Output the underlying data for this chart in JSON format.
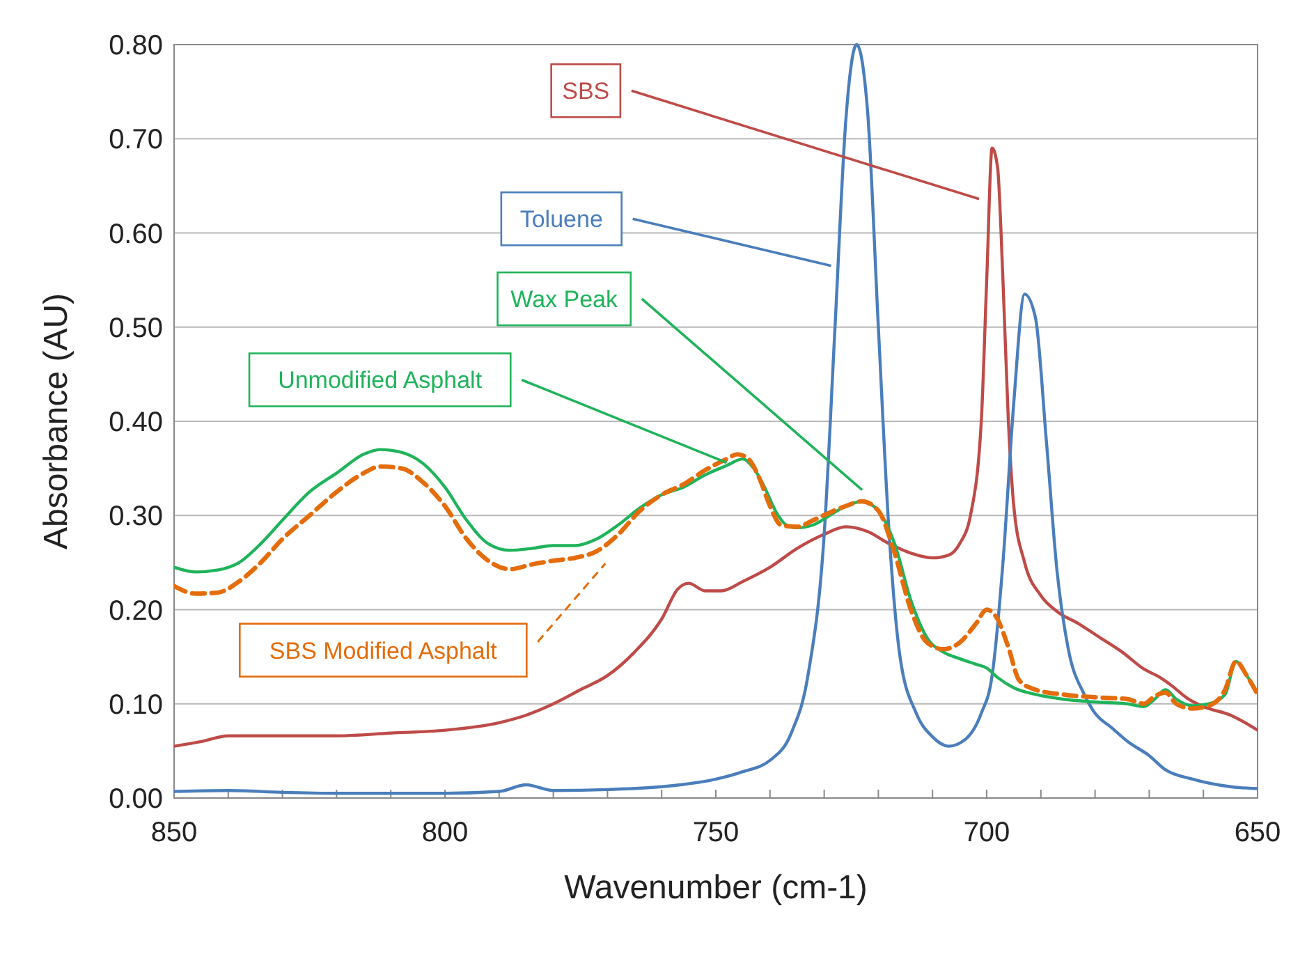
{
  "chart_data": {
    "type": "line",
    "xlabel": "Wavenumber (cm-1)",
    "ylabel": "Absorbance (AU)",
    "xlim": [
      850,
      650
    ],
    "ylim": [
      0,
      0.8
    ],
    "xticks": [
      850,
      {
        "value": 840,
        "label": null
      },
      {
        "value": 830,
        "label": null
      },
      {
        "value": 820,
        "label": null
      },
      {
        "value": 810,
        "label": null
      },
      800,
      {
        "value": 790,
        "label": null
      },
      {
        "value": 780,
        "label": null
      },
      {
        "value": 770,
        "label": null
      },
      {
        "value": 760,
        "label": null
      },
      750,
      {
        "value": 740,
        "label": null
      },
      {
        "value": 730,
        "label": null
      },
      {
        "value": 720,
        "label": null
      },
      {
        "value": 710,
        "label": null
      },
      700,
      {
        "value": 690,
        "label": null
      },
      {
        "value": 680,
        "label": null
      },
      {
        "value": 670,
        "label": null
      },
      {
        "value": 660,
        "label": null
      },
      650
    ],
    "yticks": [
      {
        "value": 0,
        "label": "0.00"
      },
      {
        "value": 0.1,
        "label": "0.10"
      },
      {
        "value": 0.2,
        "label": "0.20"
      },
      {
        "value": 0.3,
        "label": "0.30"
      },
      {
        "value": 0.4,
        "label": "0.40"
      },
      {
        "value": 0.5,
        "label": "0.50"
      },
      {
        "value": 0.6,
        "label": "0.60"
      },
      {
        "value": 0.7,
        "label": "0.70"
      },
      {
        "value": 0.8,
        "label": "0.80"
      }
    ],
    "grid": "y",
    "marker": "none",
    "annotations": [
      {
        "text": "Wax Peak",
        "x": 723,
        "y": 0.315
      }
    ],
    "series": [
      {
        "name": "SBS",
        "color": "#be4b48",
        "line_style": "solid",
        "x": [
          850,
          845,
          840,
          830,
          820,
          810,
          800,
          790,
          785,
          780,
          775,
          770,
          765,
          760,
          757,
          755,
          752,
          749,
          745,
          740,
          735,
          730,
          726,
          722,
          718,
          714,
          710,
          707,
          705,
          703,
          701,
          700,
          699,
          698,
          697,
          696,
          695,
          693,
          690,
          687,
          683,
          679,
          675,
          671,
          668,
          666,
          663,
          660,
          655,
          650
        ],
        "values": [
          0.055,
          0.06,
          0.066,
          0.066,
          0.066,
          0.069,
          0.072,
          0.08,
          0.088,
          0.1,
          0.115,
          0.13,
          0.155,
          0.19,
          0.222,
          0.228,
          0.22,
          0.22,
          0.23,
          0.245,
          0.265,
          0.28,
          0.288,
          0.283,
          0.27,
          0.26,
          0.255,
          0.258,
          0.27,
          0.3,
          0.4,
          0.55,
          0.69,
          0.67,
          0.55,
          0.4,
          0.31,
          0.25,
          0.215,
          0.198,
          0.185,
          0.17,
          0.155,
          0.137,
          0.128,
          0.12,
          0.106,
          0.097,
          0.088,
          0.072
        ]
      },
      {
        "name": "Toluene",
        "color": "#4a7ebb",
        "line_style": "solid",
        "x": [
          850,
          840,
          830,
          820,
          800,
          790,
          785,
          780,
          770,
          760,
          750,
          745,
          740,
          736,
          733,
          730,
          728,
          726,
          724,
          722,
          720,
          718,
          716,
          713,
          710,
          707,
          704,
          701,
          699,
          697,
          695,
          693,
          691,
          689,
          687,
          685,
          682,
          680,
          677,
          674,
          670,
          667,
          662,
          655,
          650
        ],
        "values": [
          0.007,
          0.008,
          0.006,
          0.005,
          0.005,
          0.007,
          0.014,
          0.008,
          0.009,
          0.012,
          0.02,
          0.028,
          0.04,
          0.07,
          0.13,
          0.28,
          0.5,
          0.72,
          0.8,
          0.73,
          0.5,
          0.28,
          0.15,
          0.09,
          0.065,
          0.055,
          0.062,
          0.09,
          0.13,
          0.25,
          0.42,
          0.535,
          0.51,
          0.38,
          0.24,
          0.16,
          0.11,
          0.09,
          0.075,
          0.06,
          0.045,
          0.03,
          0.02,
          0.012,
          0.01
        ]
      },
      {
        "name": "Unmodified Asphalt",
        "color": "#1fb35a",
        "line_style": "solid",
        "x": [
          850,
          846,
          842,
          838,
          834,
          830,
          825,
          820,
          815,
          812,
          808,
          804,
          800,
          796,
          792,
          788,
          784,
          780,
          776,
          772,
          768,
          764,
          760,
          756,
          752,
          748,
          745,
          743,
          741,
          739,
          737,
          735,
          732,
          729,
          726,
          723,
          720,
          717,
          714,
          711,
          708,
          705,
          702,
          700,
          698,
          695,
          691,
          686,
          680,
          674,
          671,
          669,
          667,
          665,
          662,
          659,
          656,
          654,
          652,
          650
        ],
        "values": [
          0.245,
          0.24,
          0.242,
          0.25,
          0.27,
          0.295,
          0.325,
          0.345,
          0.365,
          0.37,
          0.367,
          0.355,
          0.33,
          0.295,
          0.27,
          0.263,
          0.265,
          0.268,
          0.268,
          0.275,
          0.29,
          0.308,
          0.322,
          0.33,
          0.343,
          0.353,
          0.36,
          0.35,
          0.33,
          0.305,
          0.29,
          0.287,
          0.29,
          0.3,
          0.31,
          0.315,
          0.305,
          0.27,
          0.21,
          0.17,
          0.155,
          0.148,
          0.142,
          0.138,
          0.128,
          0.117,
          0.11,
          0.105,
          0.102,
          0.1,
          0.097,
          0.105,
          0.115,
          0.105,
          0.098,
          0.1,
          0.11,
          0.145,
          0.13,
          0.112
        ]
      },
      {
        "name": "SBS Modified Asphalt",
        "color": "#e46c0a",
        "line_style": "dashed",
        "x": [
          850,
          846,
          842,
          838,
          834,
          830,
          825,
          820,
          815,
          812,
          808,
          804,
          800,
          796,
          792,
          788,
          784,
          780,
          776,
          772,
          768,
          764,
          760,
          756,
          752,
          748,
          746,
          744,
          742,
          740,
          738,
          735,
          732,
          729,
          726,
          723,
          720,
          717,
          714,
          711,
          708,
          705,
          702,
          700,
          698,
          696,
          694,
          691,
          686,
          680,
          674,
          671,
          669,
          667,
          665,
          662,
          659,
          656,
          654,
          652,
          650
        ],
        "values": [
          0.225,
          0.217,
          0.218,
          0.23,
          0.25,
          0.275,
          0.3,
          0.325,
          0.345,
          0.352,
          0.35,
          0.335,
          0.31,
          0.275,
          0.252,
          0.243,
          0.248,
          0.252,
          0.255,
          0.262,
          0.28,
          0.305,
          0.322,
          0.333,
          0.348,
          0.36,
          0.365,
          0.36,
          0.34,
          0.31,
          0.29,
          0.288,
          0.295,
          0.303,
          0.31,
          0.315,
          0.305,
          0.26,
          0.2,
          0.165,
          0.158,
          0.165,
          0.185,
          0.2,
          0.19,
          0.16,
          0.125,
          0.115,
          0.11,
          0.107,
          0.105,
          0.1,
          0.108,
          0.112,
          0.1,
          0.095,
          0.098,
          0.115,
          0.145,
          0.13,
          0.11
        ]
      }
    ]
  }
}
